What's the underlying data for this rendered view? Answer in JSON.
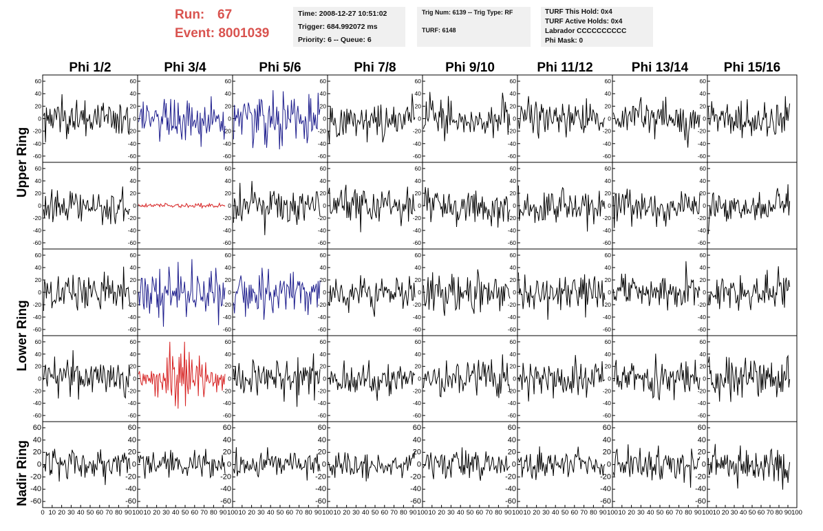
{
  "header": {
    "run_label": "Run:",
    "run_value": "67",
    "event_label": "Event:",
    "event_value": "8001039",
    "time_line": "Time: 2008-12-27 10:51:02",
    "trigger_line": "Trigger: 684.992072 ms",
    "priority_line": "Priority: 6 -- Queue: 6",
    "trig_num_line": "Trig Num: 6139 -- Trig Type: RF",
    "turf_line": "TURF: 6148",
    "turf_hold_line": "TURF This Hold: 0x4",
    "turf_active_line": "TURF Active Holds: 0x4",
    "labrador_line": "Labrador CCCCCCCCCC",
    "phi_mask_line": "Phi Mask: 0"
  },
  "colors": {
    "normal": "#000000",
    "blue": "#1c1c8c",
    "red": "#d62020",
    "header_red": "#d9534f",
    "box_bg": "#f0f0f0"
  },
  "chart_data": {
    "type": "line",
    "columns": [
      "Phi 1/2",
      "Phi 3/4",
      "Phi 5/6",
      "Phi 7/8",
      "Phi 9/10",
      "Phi 11/12",
      "Phi 13/14",
      "Phi 15/16"
    ],
    "row_labels": [
      "Upper Ring",
      "Lower Ring",
      "Nadir Ring"
    ],
    "ylim": [
      -70,
      70
    ],
    "xlim": [
      0,
      100
    ],
    "y_ticks": [
      "60",
      "40",
      "20",
      "0",
      "-20",
      "-40",
      "-60"
    ],
    "x_ticks": [
      "0",
      "10",
      "20",
      "30",
      "40",
      "50",
      "60",
      "70",
      "80",
      "90",
      "100"
    ],
    "trace_samples": 95,
    "traces": [
      {
        "row": 0,
        "col": 0,
        "color": "normal",
        "amp": 15
      },
      {
        "row": 0,
        "col": 1,
        "color": "blue",
        "amp": 17
      },
      {
        "row": 0,
        "col": 2,
        "color": "blue",
        "amp": 22
      },
      {
        "row": 0,
        "col": 3,
        "color": "normal",
        "amp": 15
      },
      {
        "row": 0,
        "col": 4,
        "color": "normal",
        "amp": 15
      },
      {
        "row": 0,
        "col": 5,
        "color": "normal",
        "amp": 14
      },
      {
        "row": 0,
        "col": 6,
        "color": "normal",
        "amp": 16
      },
      {
        "row": 0,
        "col": 7,
        "color": "normal",
        "amp": 14
      },
      {
        "row": 1,
        "col": 0,
        "color": "normal",
        "amp": 15
      },
      {
        "row": 1,
        "col": 1,
        "color": "red",
        "amp": 2
      },
      {
        "row": 1,
        "col": 2,
        "color": "normal",
        "amp": 15
      },
      {
        "row": 1,
        "col": 3,
        "color": "normal",
        "amp": 14
      },
      {
        "row": 1,
        "col": 4,
        "color": "normal",
        "amp": 15
      },
      {
        "row": 1,
        "col": 5,
        "color": "normal",
        "amp": 14
      },
      {
        "row": 1,
        "col": 6,
        "color": "normal",
        "amp": 14
      },
      {
        "row": 1,
        "col": 7,
        "color": "normal",
        "amp": 14
      },
      {
        "row": 2,
        "col": 0,
        "color": "normal",
        "amp": 15
      },
      {
        "row": 2,
        "col": 1,
        "color": "blue",
        "amp": 19
      },
      {
        "row": 2,
        "col": 2,
        "color": "blue",
        "amp": 22
      },
      {
        "row": 2,
        "col": 3,
        "color": "normal",
        "amp": 14
      },
      {
        "row": 2,
        "col": 4,
        "color": "normal",
        "amp": 15
      },
      {
        "row": 2,
        "col": 5,
        "color": "normal",
        "amp": 14
      },
      {
        "row": 2,
        "col": 6,
        "color": "normal",
        "amp": 14
      },
      {
        "row": 2,
        "col": 7,
        "color": "normal",
        "amp": 14
      },
      {
        "row": 3,
        "col": 0,
        "color": "normal",
        "amp": 15
      },
      {
        "row": 3,
        "col": 1,
        "color": "red",
        "amp": 18
      },
      {
        "row": 3,
        "col": 2,
        "color": "normal",
        "amp": 17
      },
      {
        "row": 3,
        "col": 3,
        "color": "normal",
        "amp": 14
      },
      {
        "row": 3,
        "col": 4,
        "color": "normal",
        "amp": 15
      },
      {
        "row": 3,
        "col": 5,
        "color": "normal",
        "amp": 14
      },
      {
        "row": 3,
        "col": 6,
        "color": "normal",
        "amp": 15
      },
      {
        "row": 3,
        "col": 7,
        "color": "normal",
        "amp": 15
      },
      {
        "row": 4,
        "col": 0,
        "color": "normal",
        "amp": 15
      },
      {
        "row": 4,
        "col": 1,
        "color": "normal",
        "amp": 11
      },
      {
        "row": 4,
        "col": 2,
        "color": "normal",
        "amp": 13
      },
      {
        "row": 4,
        "col": 3,
        "color": "normal",
        "amp": 12
      },
      {
        "row": 4,
        "col": 4,
        "color": "normal",
        "amp": 12
      },
      {
        "row": 4,
        "col": 5,
        "color": "normal",
        "amp": 13
      },
      {
        "row": 4,
        "col": 6,
        "color": "normal",
        "amp": 13
      },
      {
        "row": 4,
        "col": 7,
        "color": "normal",
        "amp": 14
      }
    ]
  }
}
